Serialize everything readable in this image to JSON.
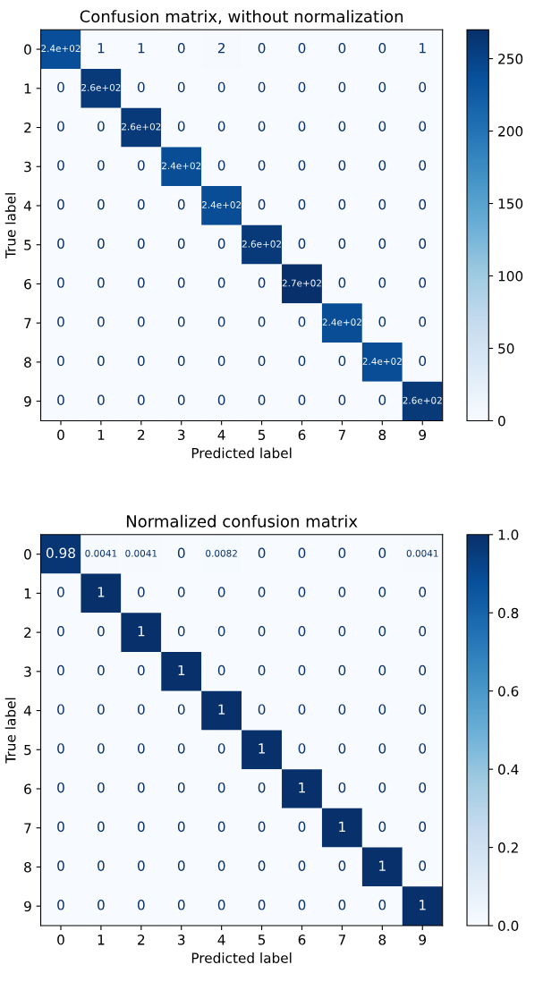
{
  "chart_data": [
    {
      "type": "heatmap",
      "title": "Confusion matrix, without normalization",
      "xlabel": "Predicted label",
      "ylabel": "True label",
      "categories": [
        "0",
        "1",
        "2",
        "3",
        "4",
        "5",
        "6",
        "7",
        "8",
        "9"
      ],
      "y_categories": [
        "0",
        "1",
        "2",
        "3",
        "4",
        "5",
        "6",
        "7",
        "8",
        "9"
      ],
      "cells": [
        [
          239,
          1,
          1,
          0,
          2,
          0,
          0,
          0,
          0,
          1
        ],
        [
          0,
          260,
          0,
          0,
          0,
          0,
          0,
          0,
          0,
          0
        ],
        [
          0,
          0,
          260,
          0,
          0,
          0,
          0,
          0,
          0,
          0
        ],
        [
          0,
          0,
          0,
          240,
          0,
          0,
          0,
          0,
          0,
          0
        ],
        [
          0,
          0,
          0,
          0,
          240,
          0,
          0,
          0,
          0,
          0
        ],
        [
          0,
          0,
          0,
          0,
          0,
          260,
          0,
          0,
          0,
          0
        ],
        [
          0,
          0,
          0,
          0,
          0,
          0,
          270,
          0,
          0,
          0
        ],
        [
          0,
          0,
          0,
          0,
          0,
          0,
          0,
          240,
          0,
          0
        ],
        [
          0,
          0,
          0,
          0,
          0,
          0,
          0,
          0,
          240,
          0
        ],
        [
          0,
          0,
          0,
          0,
          0,
          0,
          0,
          0,
          0,
          260
        ]
      ],
      "cell_labels": [
        [
          "2.4e+02",
          "1",
          "1",
          "0",
          "2",
          "0",
          "0",
          "0",
          "0",
          "1"
        ],
        [
          "0",
          "2.6e+02",
          "0",
          "0",
          "0",
          "0",
          "0",
          "0",
          "0",
          "0"
        ],
        [
          "0",
          "0",
          "2.6e+02",
          "0",
          "0",
          "0",
          "0",
          "0",
          "0",
          "0"
        ],
        [
          "0",
          "0",
          "0",
          "2.4e+02",
          "0",
          "0",
          "0",
          "0",
          "0",
          "0"
        ],
        [
          "0",
          "0",
          "0",
          "0",
          "2.4e+02",
          "0",
          "0",
          "0",
          "0",
          "0"
        ],
        [
          "0",
          "0",
          "0",
          "0",
          "0",
          "2.6e+02",
          "0",
          "0",
          "0",
          "0"
        ],
        [
          "0",
          "0",
          "0",
          "0",
          "0",
          "0",
          "2.7e+02",
          "0",
          "0",
          "0"
        ],
        [
          "0",
          "0",
          "0",
          "0",
          "0",
          "0",
          "0",
          "2.4e+02",
          "0",
          "0"
        ],
        [
          "0",
          "0",
          "0",
          "0",
          "0",
          "0",
          "0",
          "0",
          "2.4e+02",
          "0"
        ],
        [
          "0",
          "0",
          "0",
          "0",
          "0",
          "0",
          "0",
          "0",
          "0",
          "2.6e+02"
        ]
      ],
      "clim": [
        0,
        270
      ],
      "cticks": [
        0,
        50,
        100,
        150,
        200,
        250
      ]
    },
    {
      "type": "heatmap",
      "title": "Normalized confusion matrix",
      "xlabel": "Predicted label",
      "ylabel": "True label",
      "categories": [
        "0",
        "1",
        "2",
        "3",
        "4",
        "5",
        "6",
        "7",
        "8",
        "9"
      ],
      "y_categories": [
        "0",
        "1",
        "2",
        "3",
        "4",
        "5",
        "6",
        "7",
        "8",
        "9"
      ],
      "cells": [
        [
          0.98,
          0.0041,
          0.0041,
          0,
          0.0082,
          0,
          0,
          0,
          0,
          0.0041
        ],
        [
          0,
          1,
          0,
          0,
          0,
          0,
          0,
          0,
          0,
          0
        ],
        [
          0,
          0,
          1,
          0,
          0,
          0,
          0,
          0,
          0,
          0
        ],
        [
          0,
          0,
          0,
          1,
          0,
          0,
          0,
          0,
          0,
          0
        ],
        [
          0,
          0,
          0,
          0,
          1,
          0,
          0,
          0,
          0,
          0
        ],
        [
          0,
          0,
          0,
          0,
          0,
          1,
          0,
          0,
          0,
          0
        ],
        [
          0,
          0,
          0,
          0,
          0,
          0,
          1,
          0,
          0,
          0
        ],
        [
          0,
          0,
          0,
          0,
          0,
          0,
          0,
          1,
          0,
          0
        ],
        [
          0,
          0,
          0,
          0,
          0,
          0,
          0,
          0,
          1,
          0
        ],
        [
          0,
          0,
          0,
          0,
          0,
          0,
          0,
          0,
          0,
          1
        ]
      ],
      "cell_labels": [
        [
          "0.98",
          "0.0041",
          "0.0041",
          "0",
          "0.0082",
          "0",
          "0",
          "0",
          "0",
          "0.0041"
        ],
        [
          "0",
          "1",
          "0",
          "0",
          "0",
          "0",
          "0",
          "0",
          "0",
          "0"
        ],
        [
          "0",
          "0",
          "1",
          "0",
          "0",
          "0",
          "0",
          "0",
          "0",
          "0"
        ],
        [
          "0",
          "0",
          "0",
          "1",
          "0",
          "0",
          "0",
          "0",
          "0",
          "0"
        ],
        [
          "0",
          "0",
          "0",
          "0",
          "1",
          "0",
          "0",
          "0",
          "0",
          "0"
        ],
        [
          "0",
          "0",
          "0",
          "0",
          "0",
          "1",
          "0",
          "0",
          "0",
          "0"
        ],
        [
          "0",
          "0",
          "0",
          "0",
          "0",
          "0",
          "1",
          "0",
          "0",
          "0"
        ],
        [
          "0",
          "0",
          "0",
          "0",
          "0",
          "0",
          "0",
          "1",
          "0",
          "0"
        ],
        [
          "0",
          "0",
          "0",
          "0",
          "0",
          "0",
          "0",
          "0",
          "1",
          "0"
        ],
        [
          "0",
          "0",
          "0",
          "0",
          "0",
          "0",
          "0",
          "0",
          "0",
          "1"
        ]
      ],
      "clim": [
        0,
        1
      ],
      "cticks": [
        {
          "value": 0,
          "label": "0.0"
        },
        {
          "value": 0.2,
          "label": "0.2"
        },
        {
          "value": 0.4,
          "label": "0.4"
        },
        {
          "value": 0.6,
          "label": "0.6"
        },
        {
          "value": 0.8,
          "label": "0.8"
        },
        {
          "value": 1,
          "label": "1.0"
        }
      ]
    }
  ]
}
